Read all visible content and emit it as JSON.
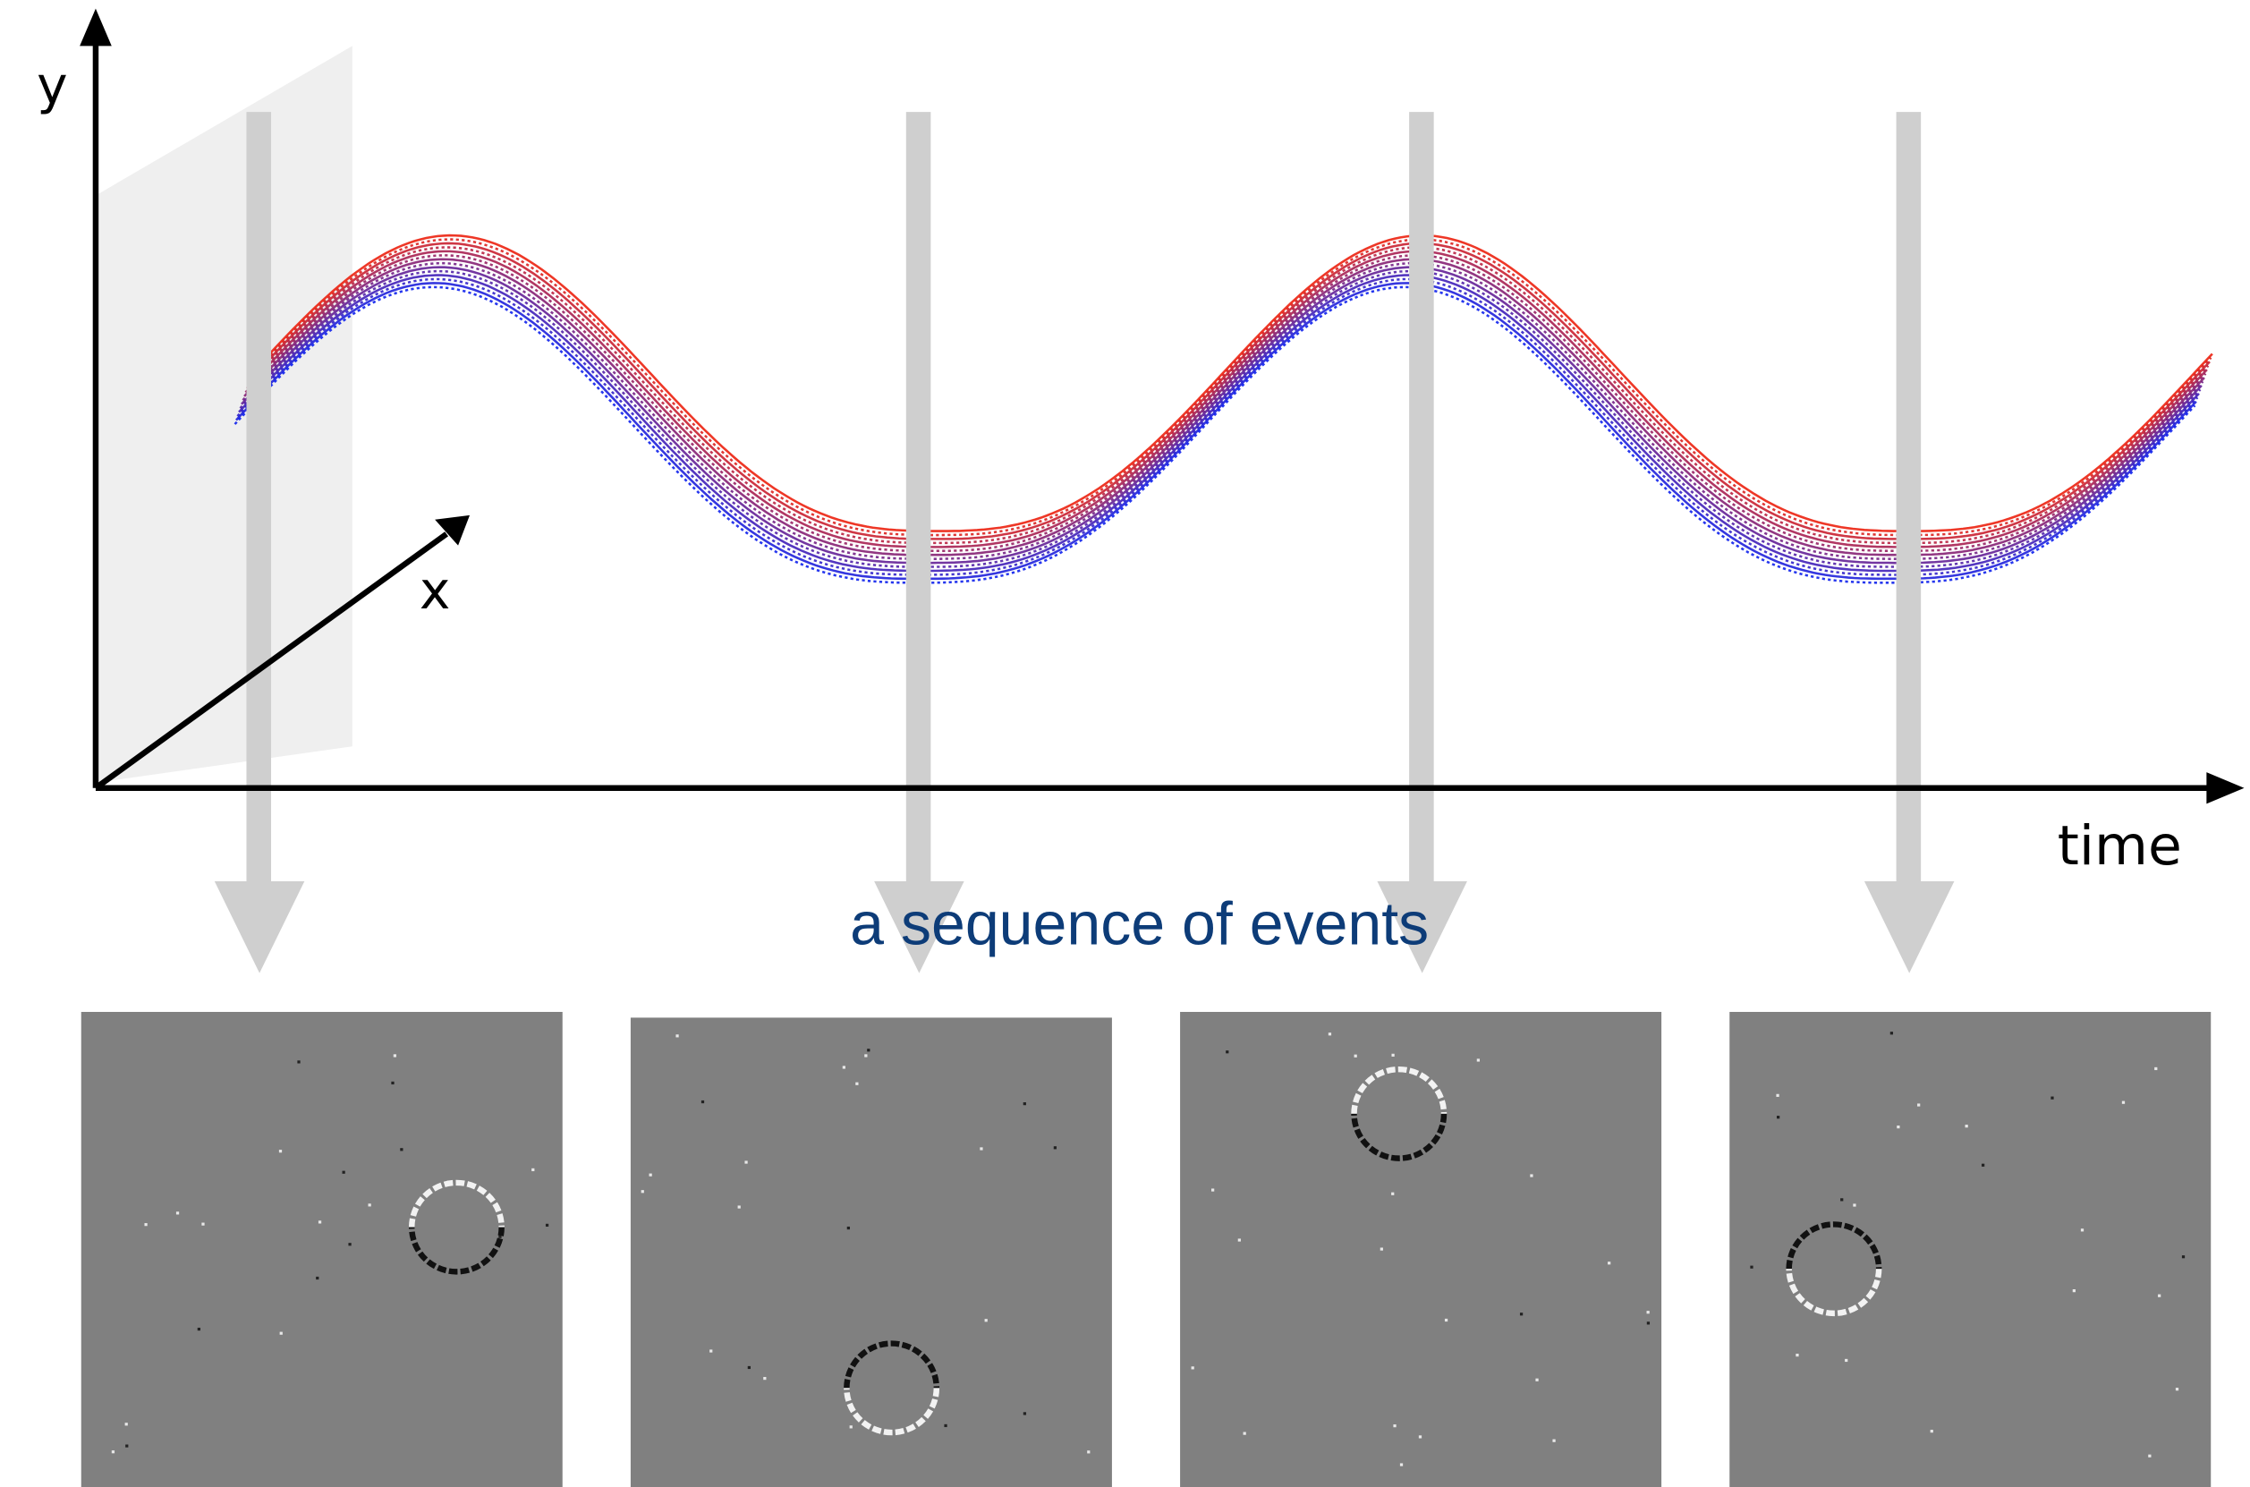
{
  "axes": {
    "y": "y",
    "x": "x",
    "time": "time"
  },
  "caption": "a sequence of events"
}
